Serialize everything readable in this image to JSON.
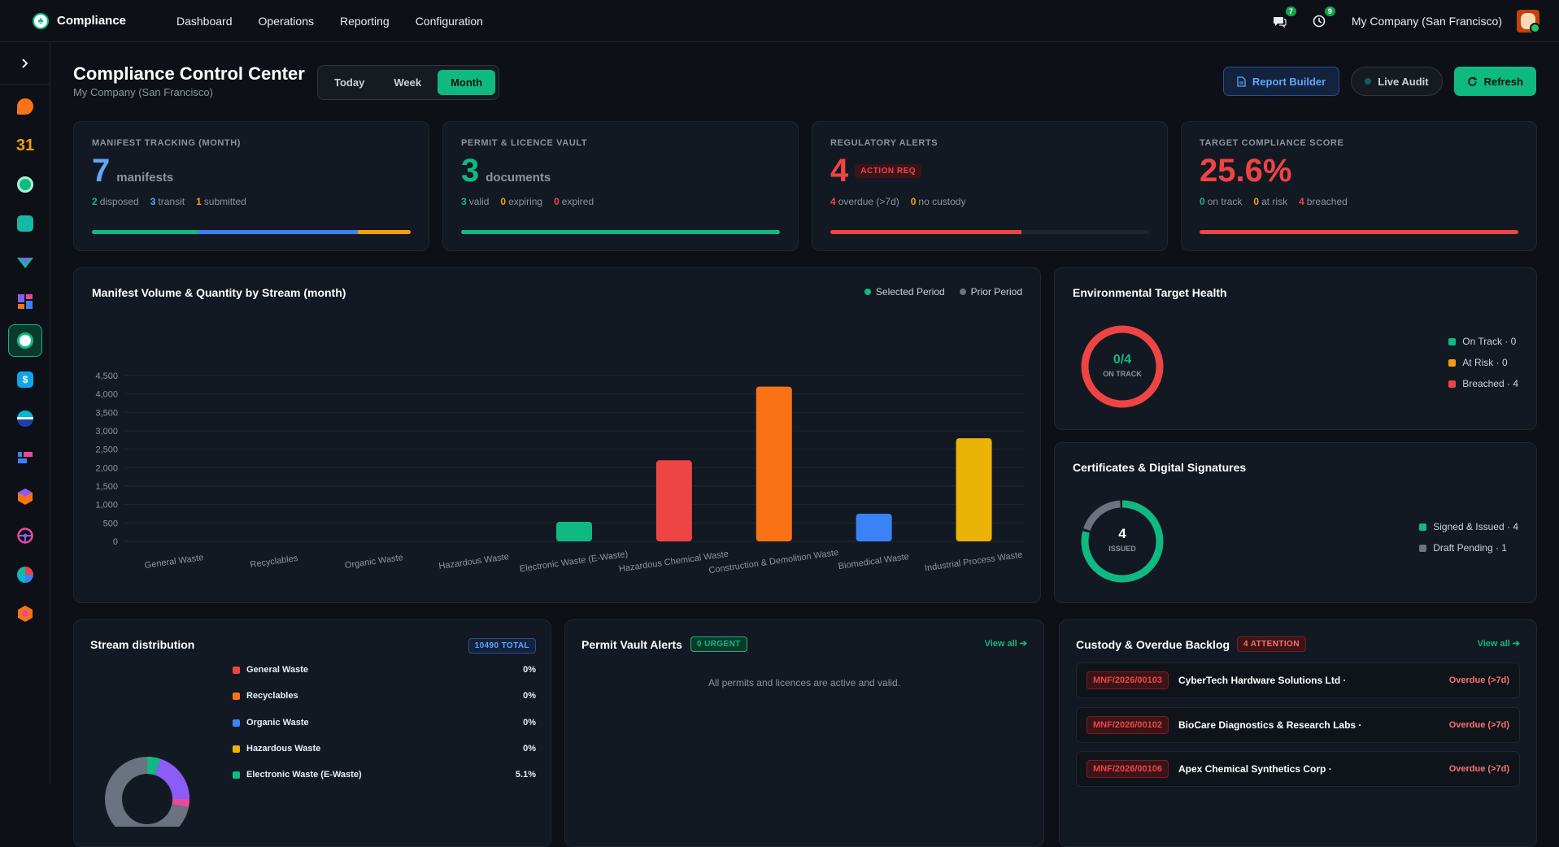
{
  "topbar": {
    "brand": "Compliance",
    "brand_logo": "leaf-logo",
    "nav": [
      "Dashboard",
      "Operations",
      "Reporting",
      "Configuration"
    ],
    "chat_count": "7",
    "activity_count": "9",
    "company": "My Company (San Francisco)"
  },
  "header": {
    "title": "Compliance Control Center",
    "subtitle": "My Company (San Francisco)",
    "periods": [
      "Today",
      "Week",
      "Month"
    ],
    "active_period": "Month",
    "report_builder": "Report Builder",
    "live_audit": "Live Audit",
    "refresh": "Refresh"
  },
  "kpis": {
    "manifest": {
      "label": "MANIFEST TRACKING (MONTH)",
      "value": "7",
      "unit": "manifests",
      "s1n": "2",
      "s1": "disposed",
      "s2n": "3",
      "s2": "transit",
      "s3n": "1",
      "s3": "submitted",
      "segments": [
        2,
        3,
        1
      ]
    },
    "permit": {
      "label": "PERMIT & LICENCE VAULT",
      "value": "3",
      "unit": "documents",
      "s1n": "3",
      "s1": "valid",
      "s2n": "0",
      "s2": "expiring",
      "s3n": "0",
      "s3": "expired",
      "segments": [
        3,
        0,
        0
      ]
    },
    "alerts": {
      "label": "REGULATORY ALERTS",
      "value": "4",
      "badge": "ACTION REQ",
      "s1n": "4",
      "s1": "overdue (>7d)",
      "s2n": "0",
      "s2": "no custody",
      "fill": 0.6
    },
    "score": {
      "label": "TARGET COMPLIANCE SCORE",
      "value": "25.6%",
      "s1n": "0",
      "s1": "on track",
      "s2n": "0",
      "s2": "at risk",
      "s3n": "4",
      "s3": "breached",
      "segments": [
        0,
        0,
        4
      ]
    }
  },
  "volume_chart": {
    "title": "Manifest Volume & Quantity by Stream (month)",
    "legend_selected": "Selected Period",
    "legend_prior": "Prior Period"
  },
  "chart_data": {
    "type": "bar",
    "title": "Manifest Volume & Quantity by Stream (month)",
    "categories": [
      "General Waste",
      "Recyclables",
      "Organic Waste",
      "Hazardous Waste",
      "Electronic Waste (E-Waste)",
      "Hazardous Chemical Waste",
      "Construction & Demolition Waste",
      "Biomedical Waste",
      "Industrial Process Waste"
    ],
    "series": [
      {
        "name": "Selected Period",
        "values": [
          0,
          0,
          0,
          0,
          530,
          2200,
          4200,
          750,
          2800
        ],
        "colors": [
          "#10b981",
          "#10b981",
          "#10b981",
          "#10b981",
          "#10b981",
          "#ef4444",
          "#f97316",
          "#3b82f6",
          "#eab308"
        ]
      },
      {
        "name": "Prior Period",
        "values": [
          0,
          0,
          0,
          0,
          0,
          0,
          0,
          0,
          0
        ]
      }
    ],
    "yticks": [
      "0",
      "500",
      "1,000",
      "1,500",
      "2,000",
      "2,500",
      "3,000",
      "3,500",
      "4,000",
      "4,500"
    ],
    "ylim": [
      0,
      4500
    ],
    "grid": true,
    "legend": "top-right"
  },
  "env_health": {
    "title": "Environmental Target Health",
    "center_value": "0/4",
    "center_label": "ON TRACK",
    "legend": [
      "On Track · 0",
      "At Risk · 0",
      "Breached · 4"
    ],
    "values": [
      0,
      0,
      4
    ],
    "colors": [
      "#10b981",
      "#f59e0b",
      "#ef4444"
    ]
  },
  "certs": {
    "title": "Certificates & Digital Signatures",
    "center_value": "4",
    "center_label": "ISSUED",
    "legend": [
      "Signed & Issued · 4",
      "Draft Pending · 1"
    ],
    "values": [
      4,
      1
    ],
    "colors": [
      "#10b981",
      "#6b7280"
    ]
  },
  "distribution": {
    "title": "Stream distribution",
    "total": "10490 TOTAL",
    "rows": [
      {
        "name": "General Waste",
        "pct": "0%",
        "color": "#ef4444"
      },
      {
        "name": "Recyclables",
        "pct": "0%",
        "color": "#f97316"
      },
      {
        "name": "Organic Waste",
        "pct": "0%",
        "color": "#3b82f6"
      },
      {
        "name": "Hazardous Waste",
        "pct": "0%",
        "color": "#eab308"
      },
      {
        "name": "Electronic Waste (E-Waste)",
        "pct": "5.1%",
        "color": "#10b981"
      }
    ]
  },
  "permit_alerts": {
    "title": "Permit Vault Alerts",
    "badge": "0 URGENT",
    "view_all": "View all",
    "empty": "All permits and licences are active and valid."
  },
  "custody": {
    "title": "Custody & Overdue Backlog",
    "badge": "4 ATTENTION",
    "view_all": "View all",
    "rows": [
      {
        "id": "MNF/2026/00103",
        "name": "CyberTech Hardware Solutions Ltd ·",
        "status": "Overdue (>7d)"
      },
      {
        "id": "MNF/2026/00102",
        "name": "BioCare Diagnostics & Research Labs ·",
        "status": "Overdue (>7d)"
      },
      {
        "id": "MNF/2026/00106",
        "name": "Apex Chemical Synthetics Corp ·",
        "status": "Overdue (>7d)"
      }
    ]
  }
}
